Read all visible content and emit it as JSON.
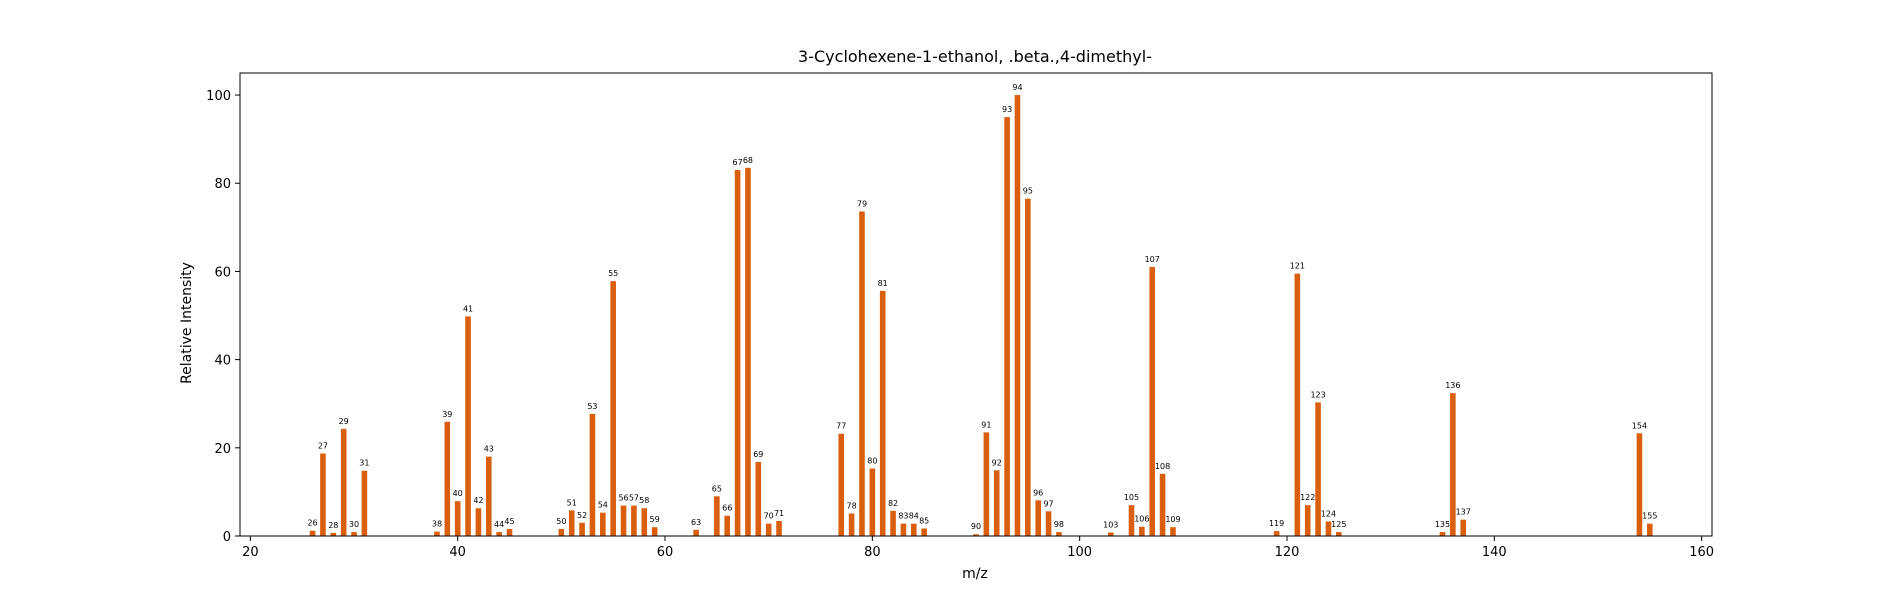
{
  "chart_data": {
    "type": "bar",
    "title": "3-Cyclohexene-1-ethanol, .beta.,4-dimethyl-",
    "xlabel": "m/z",
    "ylabel": "Relative Intensity",
    "xlim": [
      19,
      161
    ],
    "ylim": [
      0,
      105
    ],
    "xticks": [
      20,
      40,
      60,
      80,
      100,
      120,
      140,
      160
    ],
    "yticks": [
      0,
      20,
      40,
      60,
      80,
      100
    ],
    "grid": false,
    "bar_color": "#d95f0e",
    "peaks": [
      {
        "mz": 26,
        "intensity": 1.2,
        "label": "26"
      },
      {
        "mz": 27,
        "intensity": 18.7,
        "label": "27"
      },
      {
        "mz": 28,
        "intensity": 0.7,
        "label": "28"
      },
      {
        "mz": 29,
        "intensity": 24.3,
        "label": "29"
      },
      {
        "mz": 30,
        "intensity": 0.9,
        "label": "30"
      },
      {
        "mz": 31,
        "intensity": 14.8,
        "label": "31"
      },
      {
        "mz": 38,
        "intensity": 1.0,
        "label": "38"
      },
      {
        "mz": 39,
        "intensity": 25.9,
        "label": "39"
      },
      {
        "mz": 40,
        "intensity": 7.9,
        "label": "40"
      },
      {
        "mz": 41,
        "intensity": 49.8,
        "label": "41"
      },
      {
        "mz": 42,
        "intensity": 6.3,
        "label": "42"
      },
      {
        "mz": 43,
        "intensity": 18.0,
        "label": "43"
      },
      {
        "mz": 44,
        "intensity": 0.9,
        "label": "44"
      },
      {
        "mz": 45,
        "intensity": 1.6,
        "label": "45"
      },
      {
        "mz": 50,
        "intensity": 1.6,
        "label": "50"
      },
      {
        "mz": 51,
        "intensity": 5.8,
        "label": "51"
      },
      {
        "mz": 52,
        "intensity": 3.0,
        "label": "52"
      },
      {
        "mz": 53,
        "intensity": 27.7,
        "label": "53"
      },
      {
        "mz": 54,
        "intensity": 5.3,
        "label": "54"
      },
      {
        "mz": 55,
        "intensity": 57.8,
        "label": "55"
      },
      {
        "mz": 56,
        "intensity": 6.9,
        "label": "56"
      },
      {
        "mz": 57,
        "intensity": 6.9,
        "label": "57"
      },
      {
        "mz": 58,
        "intensity": 6.3,
        "label": "58"
      },
      {
        "mz": 59,
        "intensity": 2.0,
        "label": "59"
      },
      {
        "mz": 63,
        "intensity": 1.4,
        "label": "63"
      },
      {
        "mz": 65,
        "intensity": 9.0,
        "label": "65"
      },
      {
        "mz": 66,
        "intensity": 4.6,
        "label": "66"
      },
      {
        "mz": 67,
        "intensity": 83.0,
        "label": "67"
      },
      {
        "mz": 68,
        "intensity": 83.5,
        "label": "68"
      },
      {
        "mz": 69,
        "intensity": 16.8,
        "label": "69"
      },
      {
        "mz": 70,
        "intensity": 2.8,
        "label": "70"
      },
      {
        "mz": 71,
        "intensity": 3.4,
        "label": "71"
      },
      {
        "mz": 77,
        "intensity": 23.2,
        "label": "77"
      },
      {
        "mz": 78,
        "intensity": 5.1,
        "label": "78"
      },
      {
        "mz": 79,
        "intensity": 73.6,
        "label": "79"
      },
      {
        "mz": 80,
        "intensity": 15.3,
        "label": "80"
      },
      {
        "mz": 81,
        "intensity": 55.6,
        "label": "81"
      },
      {
        "mz": 82,
        "intensity": 5.7,
        "label": "82"
      },
      {
        "mz": 83,
        "intensity": 2.8,
        "label": "83"
      },
      {
        "mz": 84,
        "intensity": 2.8,
        "label": "84"
      },
      {
        "mz": 85,
        "intensity": 1.7,
        "label": "85"
      },
      {
        "mz": 90,
        "intensity": 0.4,
        "label": "90"
      },
      {
        "mz": 91,
        "intensity": 23.5,
        "label": "91"
      },
      {
        "mz": 92,
        "intensity": 14.9,
        "label": "92"
      },
      {
        "mz": 93,
        "intensity": 95.0,
        "label": "93"
      },
      {
        "mz": 94,
        "intensity": 100.0,
        "label": "94"
      },
      {
        "mz": 95,
        "intensity": 76.5,
        "label": "95"
      },
      {
        "mz": 96,
        "intensity": 8.1,
        "label": "96"
      },
      {
        "mz": 97,
        "intensity": 5.6,
        "label": "97"
      },
      {
        "mz": 98,
        "intensity": 0.9,
        "label": "98"
      },
      {
        "mz": 103,
        "intensity": 0.8,
        "label": "103"
      },
      {
        "mz": 105,
        "intensity": 7.0,
        "label": "105"
      },
      {
        "mz": 106,
        "intensity": 2.1,
        "label": "106"
      },
      {
        "mz": 107,
        "intensity": 61.0,
        "label": "107"
      },
      {
        "mz": 108,
        "intensity": 14.1,
        "label": "108"
      },
      {
        "mz": 109,
        "intensity": 2.0,
        "label": "109"
      },
      {
        "mz": 119,
        "intensity": 1.1,
        "label": "119"
      },
      {
        "mz": 121,
        "intensity": 59.5,
        "label": "121"
      },
      {
        "mz": 122,
        "intensity": 7.0,
        "label": "122"
      },
      {
        "mz": 123,
        "intensity": 30.3,
        "label": "123"
      },
      {
        "mz": 124,
        "intensity": 3.3,
        "label": "124"
      },
      {
        "mz": 125,
        "intensity": 0.9,
        "label": "125"
      },
      {
        "mz": 135,
        "intensity": 0.9,
        "label": "135"
      },
      {
        "mz": 136,
        "intensity": 32.4,
        "label": "136"
      },
      {
        "mz": 137,
        "intensity": 3.7,
        "label": "137"
      },
      {
        "mz": 154,
        "intensity": 23.3,
        "label": "154"
      },
      {
        "mz": 155,
        "intensity": 2.8,
        "label": "155"
      }
    ]
  }
}
